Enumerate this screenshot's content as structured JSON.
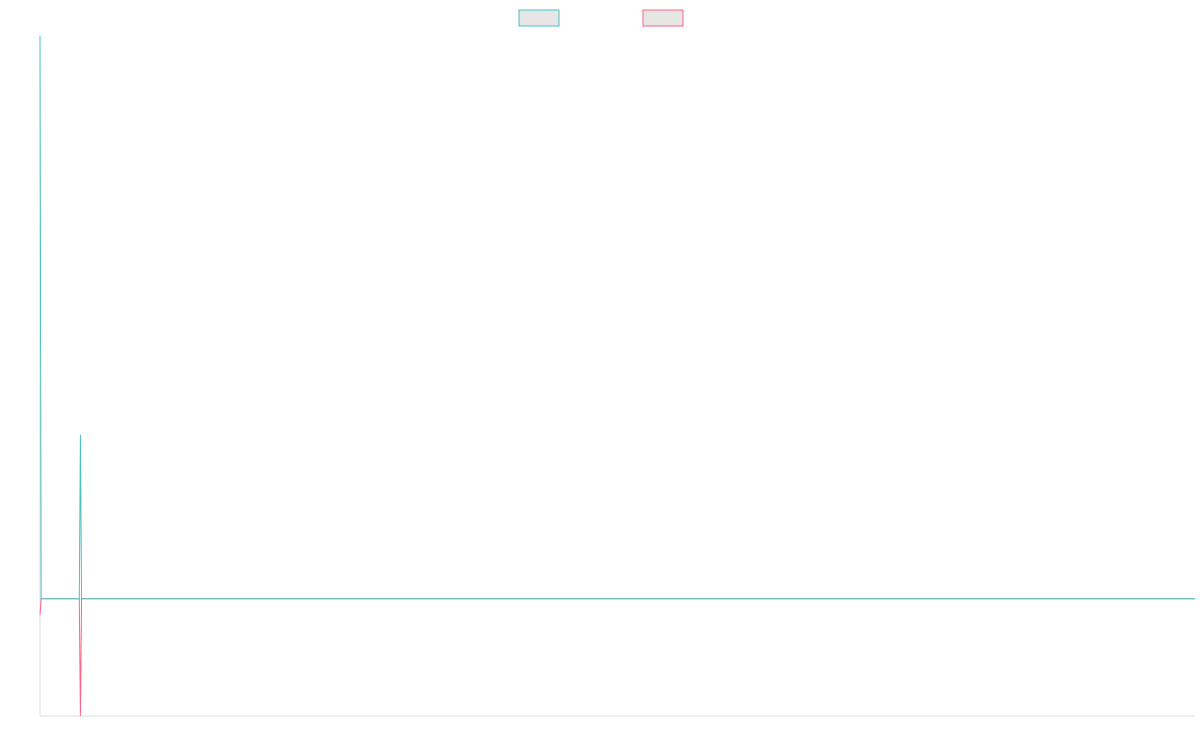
{
  "chart_data": {
    "type": "line",
    "title": "",
    "xlabel": "",
    "ylabel": "",
    "grid": false,
    "legend_placement": "top-center",
    "x_count": 1001,
    "ylim": [
      -1.0,
      4.8
    ],
    "series": [
      {
        "name": "",
        "color": "#4bc0c0",
        "fill": "#e6e6e6",
        "points": [
          [
            0,
            4.8
          ],
          [
            1,
            0
          ],
          [
            34,
            0
          ],
          [
            35,
            1.4
          ],
          [
            36,
            0
          ],
          [
            1000,
            0
          ]
        ]
      },
      {
        "name": "",
        "color": "#ff6384",
        "fill": "#e6e6e6",
        "points": [
          [
            0,
            -0.14
          ],
          [
            1,
            0
          ],
          [
            34,
            0
          ],
          [
            35,
            -1.0
          ],
          [
            36,
            0
          ],
          [
            1000,
            0
          ]
        ]
      }
    ]
  }
}
